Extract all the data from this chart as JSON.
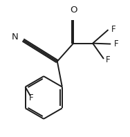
{
  "bg_color": "#ffffff",
  "line_color": "#1a1a1a",
  "text_color": "#1a1a1a",
  "font_size": 8.5,
  "line_width": 1.4,
  "figsize": [
    1.88,
    1.98
  ],
  "dpi": 100,
  "xlim": [
    0,
    1
  ],
  "ylim": [
    0,
    1
  ]
}
